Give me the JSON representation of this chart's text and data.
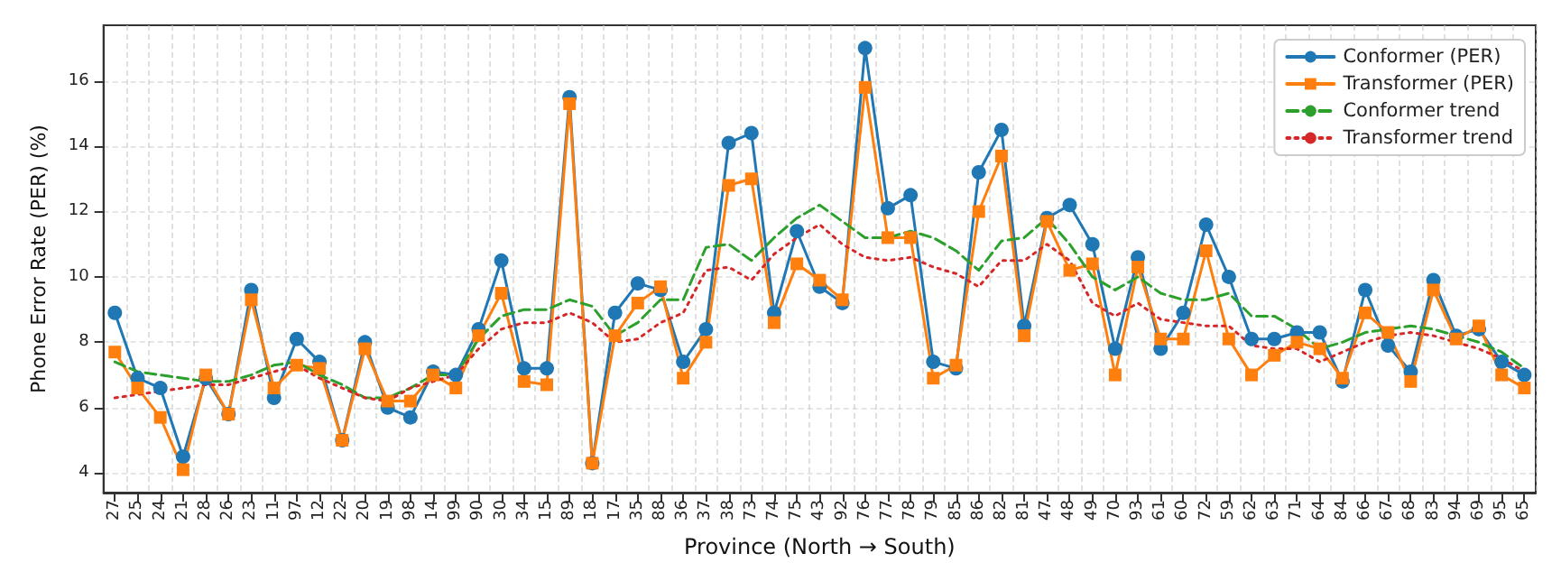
{
  "chart_data": {
    "type": "line",
    "xlabel": "Province (North → South)",
    "ylabel": "Phone Error Rate (PER) (%)",
    "categories": [
      "27",
      "25",
      "24",
      "21",
      "28",
      "26",
      "23",
      "11",
      "97",
      "12",
      "22",
      "20",
      "19",
      "98",
      "14",
      "99",
      "90",
      "30",
      "34",
      "15",
      "89",
      "18",
      "17",
      "35",
      "88",
      "36",
      "37",
      "38",
      "73",
      "74",
      "75",
      "43",
      "92",
      "76",
      "77",
      "78",
      "79",
      "85",
      "86",
      "82",
      "81",
      "47",
      "48",
      "49",
      "70",
      "93",
      "61",
      "60",
      "72",
      "59",
      "62",
      "63",
      "71",
      "64",
      "84",
      "66",
      "67",
      "68",
      "83",
      "94",
      "69",
      "95",
      "65"
    ],
    "series": [
      {
        "name": "Conformer (PER)",
        "color": "#1f77b4",
        "marker": "circle",
        "line_style": "solid",
        "values": [
          8.9,
          6.9,
          6.6,
          4.5,
          6.9,
          5.8,
          9.6,
          6.3,
          8.1,
          7.4,
          5.0,
          8.0,
          6.0,
          5.7,
          7.1,
          7.0,
          8.4,
          10.5,
          7.2,
          7.2,
          15.5,
          4.3,
          8.9,
          9.8,
          9.6,
          7.4,
          8.4,
          14.1,
          14.4,
          8.9,
          11.4,
          9.7,
          9.2,
          17.0,
          12.1,
          12.5,
          7.4,
          7.2,
          13.2,
          14.5,
          8.5,
          11.8,
          12.2,
          11.0,
          7.8,
          10.6,
          7.8,
          8.9,
          11.6,
          10.0,
          8.1,
          8.1,
          8.3,
          8.3,
          6.8,
          9.6,
          7.9,
          7.1,
          9.9,
          8.2,
          8.4,
          7.4,
          7.0
        ]
      },
      {
        "name": "Transformer (PER)",
        "color": "#ff7f0e",
        "marker": "square",
        "line_style": "solid",
        "values": [
          7.7,
          6.6,
          5.7,
          4.1,
          7.0,
          5.8,
          9.3,
          6.6,
          7.3,
          7.2,
          5.0,
          7.8,
          6.2,
          6.2,
          7.0,
          6.6,
          8.2,
          9.5,
          6.8,
          6.7,
          15.3,
          4.3,
          8.2,
          9.2,
          9.7,
          6.9,
          8.0,
          12.8,
          13.0,
          8.6,
          10.4,
          9.9,
          9.3,
          15.8,
          11.2,
          11.2,
          6.9,
          7.3,
          12.0,
          13.7,
          8.2,
          11.7,
          10.2,
          10.4,
          7.0,
          10.3,
          8.1,
          8.1,
          10.8,
          8.1,
          7.0,
          7.6,
          8.0,
          7.8,
          6.9,
          8.9,
          8.3,
          6.8,
          9.6,
          8.1,
          8.5,
          7.0,
          6.6
        ]
      },
      {
        "name": "Conformer trend",
        "color": "#2ca02c",
        "marker": "none",
        "line_style": "dashed",
        "values": [
          7.4,
          7.1,
          7.0,
          6.9,
          6.8,
          6.8,
          7.0,
          7.3,
          7.4,
          7.0,
          6.7,
          6.3,
          6.3,
          6.6,
          7.0,
          7.0,
          8.1,
          8.8,
          9.0,
          9.0,
          9.3,
          9.1,
          8.2,
          8.6,
          9.3,
          9.3,
          10.9,
          11.0,
          10.5,
          11.2,
          11.8,
          12.2,
          11.7,
          11.2,
          11.2,
          11.4,
          11.2,
          10.8,
          10.2,
          11.1,
          11.2,
          11.8,
          11.0,
          10.0,
          9.6,
          10.0,
          9.5,
          9.3,
          9.3,
          9.5,
          8.8,
          8.8,
          8.4,
          7.8,
          8.0,
          8.3,
          8.4,
          8.5,
          8.4,
          8.2,
          8.0,
          7.7,
          7.2
        ]
      },
      {
        "name": "Transformer trend",
        "color": "#d62728",
        "marker": "none",
        "line_style": "dotted",
        "values": [
          6.3,
          6.4,
          6.5,
          6.6,
          6.7,
          6.7,
          6.9,
          7.1,
          7.3,
          6.9,
          6.6,
          6.3,
          6.2,
          6.6,
          6.8,
          7.0,
          7.8,
          8.4,
          8.6,
          8.6,
          8.9,
          8.6,
          8.0,
          8.1,
          8.6,
          8.9,
          10.2,
          10.3,
          9.9,
          10.7,
          11.2,
          11.6,
          11.0,
          10.6,
          10.5,
          10.6,
          10.3,
          10.1,
          9.7,
          10.5,
          10.5,
          11.0,
          10.5,
          9.2,
          8.8,
          9.2,
          8.7,
          8.6,
          8.5,
          8.5,
          7.9,
          7.8,
          7.8,
          7.4,
          7.7,
          8.0,
          8.2,
          8.3,
          8.2,
          8.0,
          7.8,
          7.5,
          7.1
        ]
      }
    ],
    "ylim": [
      3.4,
      17.7
    ],
    "yticks": [
      4,
      6,
      8,
      10,
      12,
      14,
      16
    ],
    "grid": true,
    "legend": "top right"
  }
}
